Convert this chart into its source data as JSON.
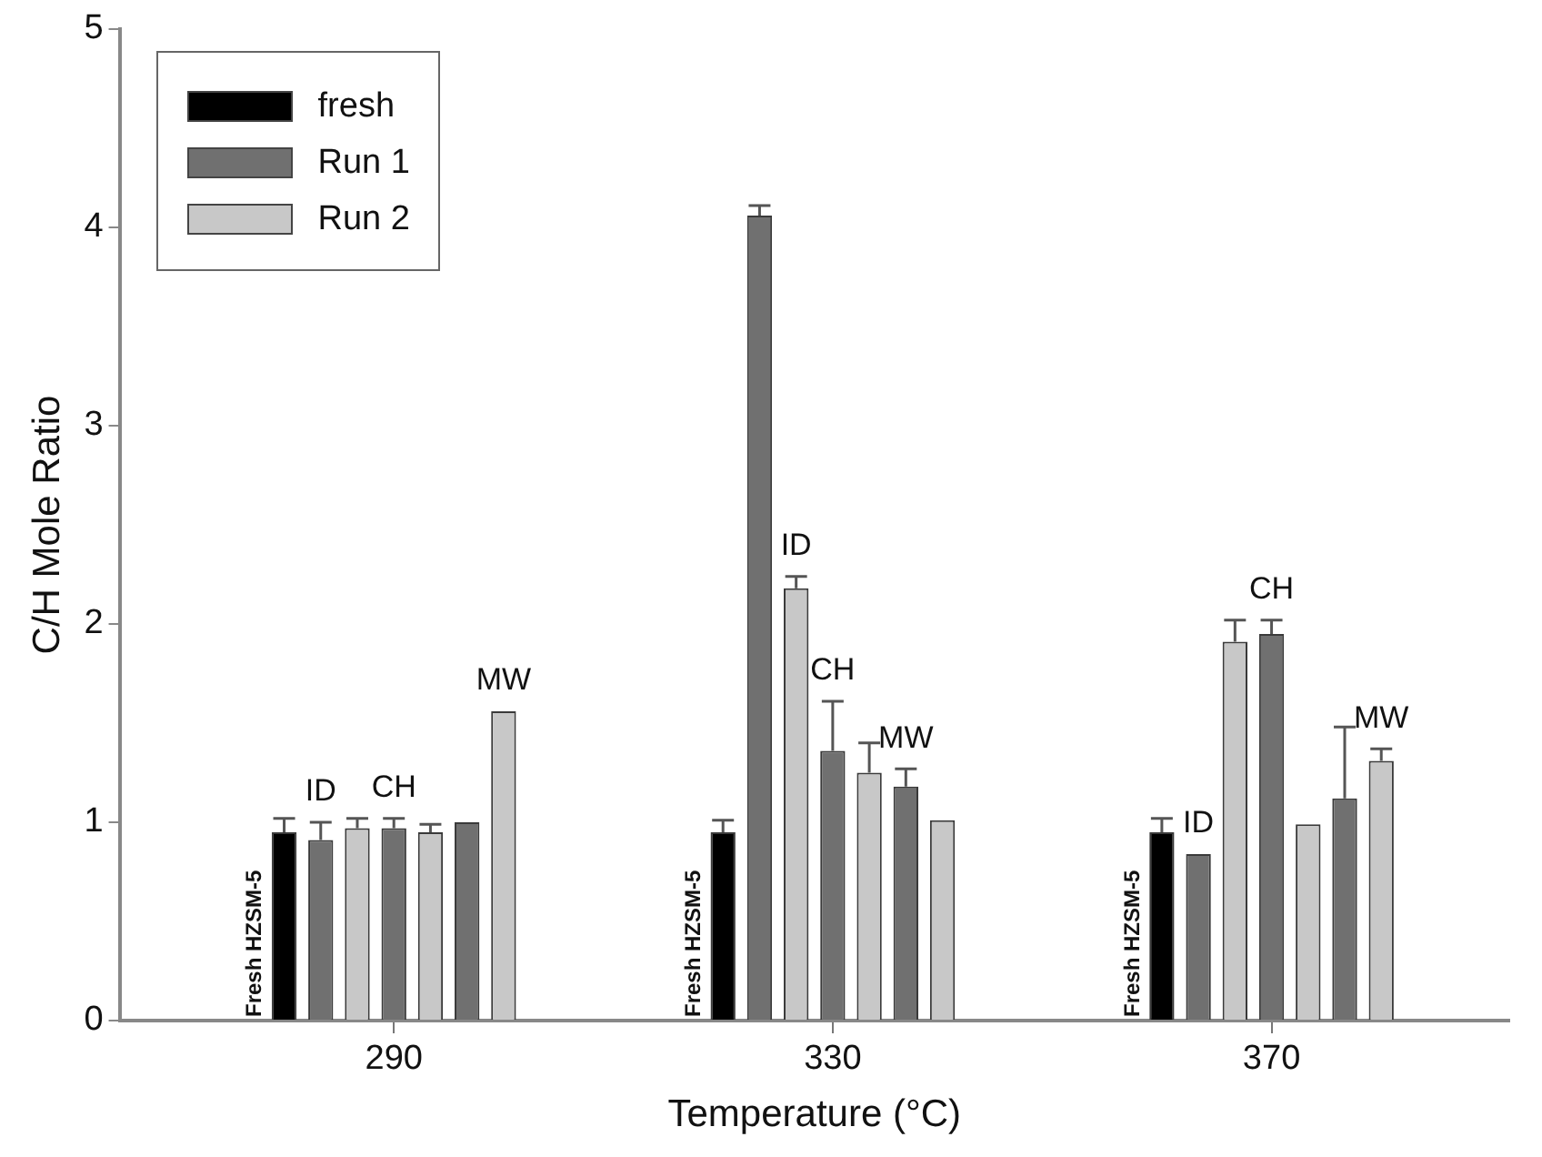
{
  "chart_data": {
    "type": "bar",
    "xlabel": "Temperature (°C)",
    "ylabel": "C/H Mole Ratio",
    "ylim": [
      0,
      5
    ],
    "yticks": [
      0,
      1,
      2,
      3,
      4,
      5
    ],
    "legend": "top left",
    "categories": [
      null,
      null,
      null,
      null,
      null,
      null,
      null,
      "290",
      null,
      null,
      null,
      null,
      null,
      null,
      null,
      null,
      null,
      null,
      null,
      "330",
      null,
      null,
      null,
      null,
      null,
      null,
      null,
      null,
      null,
      null,
      null,
      "370",
      null,
      null,
      null,
      null,
      null,
      null
    ],
    "series": [
      {
        "name": "fresh",
        "color": "#000000",
        "values": [
          null,
          null,
          null,
          null,
          0.95,
          null,
          null,
          null,
          null,
          null,
          null,
          null,
          null,
          null,
          null,
          null,
          0.95,
          null,
          null,
          null,
          null,
          null,
          null,
          null,
          null,
          null,
          null,
          null,
          0.95,
          null,
          null,
          null,
          null,
          null,
          null,
          null,
          null,
          null
        ],
        "errors": [
          null,
          null,
          null,
          null,
          0.07,
          null,
          null,
          null,
          null,
          null,
          null,
          null,
          null,
          null,
          null,
          null,
          0.06,
          null,
          null,
          null,
          null,
          null,
          null,
          null,
          null,
          null,
          null,
          null,
          0.07,
          null,
          null,
          null,
          null,
          null,
          null,
          null,
          null,
          null
        ],
        "value_labels": [
          null,
          null,
          null,
          null,
          "Fresh HZSM-5",
          null,
          null,
          null,
          null,
          null,
          null,
          null,
          null,
          null,
          null,
          null,
          "Fresh HZSM-5",
          null,
          null,
          null,
          null,
          null,
          null,
          null,
          null,
          null,
          null,
          null,
          "Fresh HZSM-5",
          null,
          null,
          null,
          null,
          null,
          null,
          null,
          null,
          null
        ]
      },
      {
        "name": "Run 1",
        "color": "#707070",
        "values": [
          null,
          null,
          null,
          null,
          null,
          0.91,
          null,
          0.97,
          null,
          1.0,
          null,
          null,
          null,
          null,
          null,
          null,
          null,
          4.06,
          null,
          1.36,
          null,
          1.18,
          null,
          null,
          null,
          null,
          null,
          null,
          null,
          0.84,
          null,
          1.95,
          null,
          1.12,
          null,
          null,
          null,
          null
        ],
        "errors": [
          null,
          null,
          null,
          null,
          null,
          0.09,
          null,
          0.05,
          null,
          null,
          null,
          null,
          null,
          null,
          null,
          null,
          null,
          0.05,
          null,
          0.25,
          null,
          0.09,
          null,
          null,
          null,
          null,
          null,
          null,
          null,
          null,
          null,
          0.07,
          null,
          0.36,
          null,
          null,
          null,
          null
        ],
        "value_labels": [
          null,
          null,
          null,
          null,
          null,
          "ID",
          null,
          "CH",
          null,
          null,
          null,
          null,
          null,
          null,
          null,
          null,
          null,
          null,
          null,
          "CH",
          null,
          "MW",
          null,
          null,
          null,
          null,
          null,
          null,
          null,
          "ID",
          null,
          "CH",
          null,
          null,
          null,
          null,
          null,
          null
        ]
      },
      {
        "name": "Run 2",
        "color": "#c8c8c8",
        "values": [
          null,
          null,
          null,
          null,
          null,
          null,
          0.97,
          null,
          0.95,
          null,
          1.56,
          null,
          null,
          null,
          null,
          null,
          null,
          null,
          2.18,
          null,
          1.25,
          null,
          1.01,
          null,
          null,
          null,
          null,
          null,
          null,
          null,
          1.91,
          null,
          0.99,
          null,
          1.31,
          null,
          null,
          null
        ],
        "errors": [
          null,
          null,
          null,
          null,
          null,
          null,
          0.05,
          null,
          0.04,
          null,
          null,
          null,
          null,
          null,
          null,
          null,
          null,
          null,
          0.06,
          null,
          0.15,
          null,
          null,
          null,
          null,
          null,
          null,
          null,
          null,
          null,
          0.11,
          null,
          null,
          null,
          0.06,
          null,
          null,
          null
        ],
        "value_labels": [
          null,
          null,
          null,
          null,
          null,
          null,
          null,
          null,
          null,
          null,
          "MW",
          null,
          null,
          null,
          null,
          null,
          null,
          null,
          "ID",
          null,
          null,
          null,
          null,
          null,
          null,
          null,
          null,
          null,
          null,
          null,
          null,
          null,
          null,
          null,
          "MW",
          null,
          null,
          null
        ]
      }
    ]
  }
}
